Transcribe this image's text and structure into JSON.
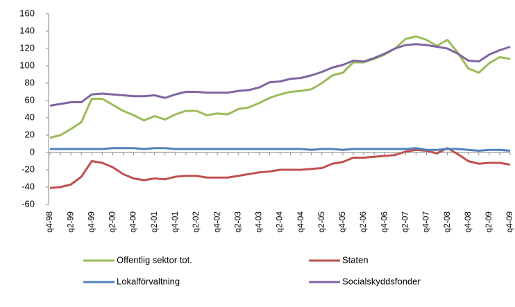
{
  "chart_data": {
    "type": "line",
    "categories": [
      "q4-98",
      null,
      "q2-99",
      null,
      "q4-99",
      null,
      "q2-00",
      null,
      "q4-00",
      null,
      "q2-01",
      null,
      "q4-01",
      null,
      "q2-02",
      null,
      "q4-02",
      null,
      "q2-03",
      null,
      "q4-03",
      null,
      "q2-04",
      null,
      "q4-04",
      null,
      "q2-05",
      null,
      "q4-05",
      null,
      "q2-06",
      null,
      "q4-06",
      null,
      "q2-07",
      null,
      "q4-07",
      null,
      "q2-08",
      null,
      "q4-08",
      null,
      "q2-09",
      null,
      "q4-09"
    ],
    "series": [
      {
        "name": "Offentlig sektor tot.",
        "color": "#9bbb59",
        "values": [
          17,
          20,
          27,
          35,
          62,
          62,
          55,
          48,
          43,
          37,
          42,
          38,
          44,
          48,
          48,
          43,
          45,
          44,
          50,
          52,
          57,
          63,
          67,
          70,
          71,
          73,
          80,
          89,
          92,
          104,
          104,
          108,
          113,
          120,
          131,
          134,
          130,
          123,
          130,
          115,
          97,
          92,
          103,
          110,
          108
        ]
      },
      {
        "name": "Staten",
        "color": "#c0504d",
        "values": [
          -41,
          -40,
          -37,
          -28,
          -10,
          -12,
          -17,
          -25,
          -30,
          -32,
          -30,
          -31,
          -28,
          -27,
          -27,
          -29,
          -29,
          -29,
          -27,
          -25,
          -23,
          -22,
          -20,
          -20,
          -20,
          -19,
          -18,
          -13,
          -11,
          -6,
          -6,
          -5,
          -4,
          -3,
          1,
          3,
          2,
          -1,
          5,
          -2,
          -10,
          -13,
          -12,
          -12,
          -14
        ]
      },
      {
        "name": "Lokalförvaltning",
        "color": "#4f81bd",
        "values": [
          4,
          4,
          4,
          4,
          4,
          4,
          5,
          5,
          5,
          4,
          5,
          5,
          4,
          4,
          4,
          4,
          4,
          4,
          4,
          4,
          4,
          4,
          4,
          4,
          4,
          3,
          4,
          4,
          3,
          4,
          4,
          4,
          4,
          4,
          4,
          5,
          3,
          3,
          4,
          4,
          3,
          2,
          3,
          3,
          2
        ]
      },
      {
        "name": "Socialskyddsfonder",
        "color": "#8064a2",
        "values": [
          54,
          56,
          58,
          58,
          67,
          68,
          67,
          66,
          65,
          65,
          66,
          63,
          67,
          70,
          70,
          69,
          69,
          69,
          71,
          72,
          75,
          81,
          82,
          85,
          86,
          89,
          93,
          98,
          101,
          106,
          105,
          109,
          114,
          120,
          124,
          125,
          124,
          122,
          120,
          114,
          106,
          105,
          113,
          118,
          122
        ]
      }
    ],
    "ylim": [
      -60,
      160
    ],
    "yticks": [
      -60,
      -40,
      -20,
      0,
      20,
      40,
      60,
      80,
      100,
      120,
      140,
      160
    ],
    "grid": false
  }
}
